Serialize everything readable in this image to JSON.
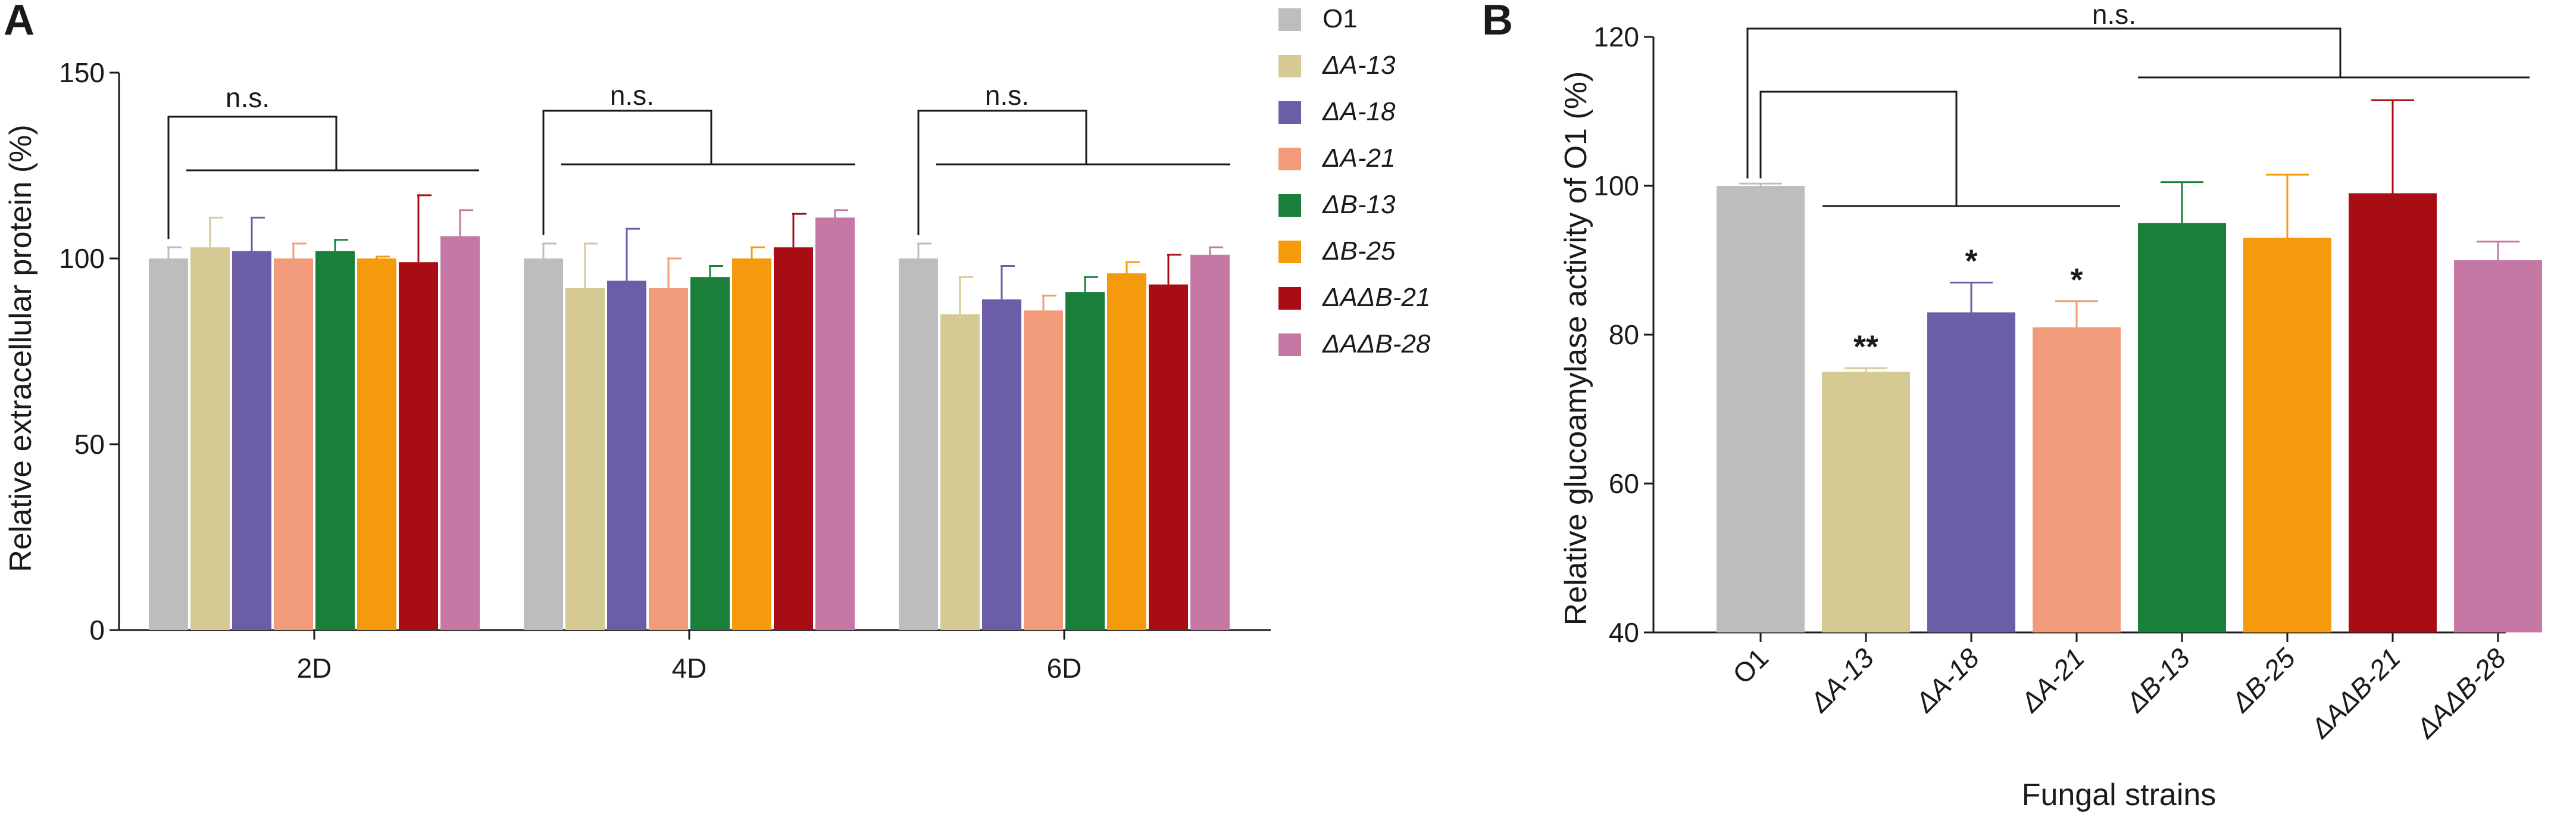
{
  "chart_data": [
    {
      "panel": "A",
      "type": "bar",
      "ylabel": "Relative extracellular protein (%)",
      "xlabel": "",
      "ylim": [
        0,
        150
      ],
      "yticks": [
        0,
        50,
        100,
        150
      ],
      "categories": [
        "2D",
        "4D",
        "6D"
      ],
      "legend_position": "right",
      "series": [
        {
          "name": "O1",
          "color": "#bdbdbd",
          "values": [
            100,
            100,
            100
          ],
          "errors": [
            3,
            4,
            4
          ]
        },
        {
          "name": "ΔA-13",
          "color": "#d5c994",
          "values": [
            103,
            92,
            85
          ],
          "errors": [
            8,
            12,
            10
          ]
        },
        {
          "name": "ΔA-18",
          "color": "#6c5ea6",
          "values": [
            102,
            94,
            89
          ],
          "errors": [
            9,
            14,
            9
          ]
        },
        {
          "name": "ΔA-21",
          "color": "#f29b7a",
          "values": [
            100,
            92,
            86
          ],
          "errors": [
            4,
            8,
            4
          ]
        },
        {
          "name": "ΔB-13",
          "color": "#1b7f3c",
          "values": [
            102,
            95,
            91
          ],
          "errors": [
            3,
            3,
            4
          ]
        },
        {
          "name": "ΔB-25",
          "color": "#f59a0c",
          "values": [
            100,
            100,
            96
          ],
          "errors": [
            0.5,
            3,
            3
          ]
        },
        {
          "name": "ΔAΔB-21",
          "color": "#a80d14",
          "values": [
            99,
            103,
            93
          ],
          "errors": [
            18,
            9,
            8
          ]
        },
        {
          "name": "ΔAΔB-28",
          "color": "#c578a3",
          "values": [
            106,
            111,
            101
          ],
          "errors": [
            7,
            2,
            2
          ]
        }
      ],
      "annotations": [
        "n.s.",
        "n.s.",
        "n.s."
      ]
    },
    {
      "panel": "B",
      "type": "bar",
      "ylabel": "Relative glucoamylase activity of O1 (%)",
      "xlabel": "Fungal strains",
      "ylim": [
        40,
        120
      ],
      "yticks": [
        40,
        60,
        80,
        100,
        120
      ],
      "categories": [
        "O1",
        "ΔA-13",
        "ΔA-18",
        "ΔA-21",
        "ΔB-13",
        "ΔB-25",
        "ΔAΔB-21",
        "ΔAΔB-28"
      ],
      "values": [
        100,
        75,
        83,
        81,
        95,
        93,
        99,
        90
      ],
      "errors": [
        0.3,
        0.5,
        4,
        3.5,
        5.5,
        8.5,
        12.5,
        2.5
      ],
      "colors": [
        "#bdbdbd",
        "#d5c994",
        "#6c5ea6",
        "#f29b7a",
        "#1b7f3c",
        "#f59a0c",
        "#a80d14",
        "#c578a3"
      ],
      "significance": [
        "",
        "**",
        "*",
        "*",
        "",
        "",
        "",
        ""
      ],
      "annotations": [
        "n.s."
      ]
    }
  ]
}
